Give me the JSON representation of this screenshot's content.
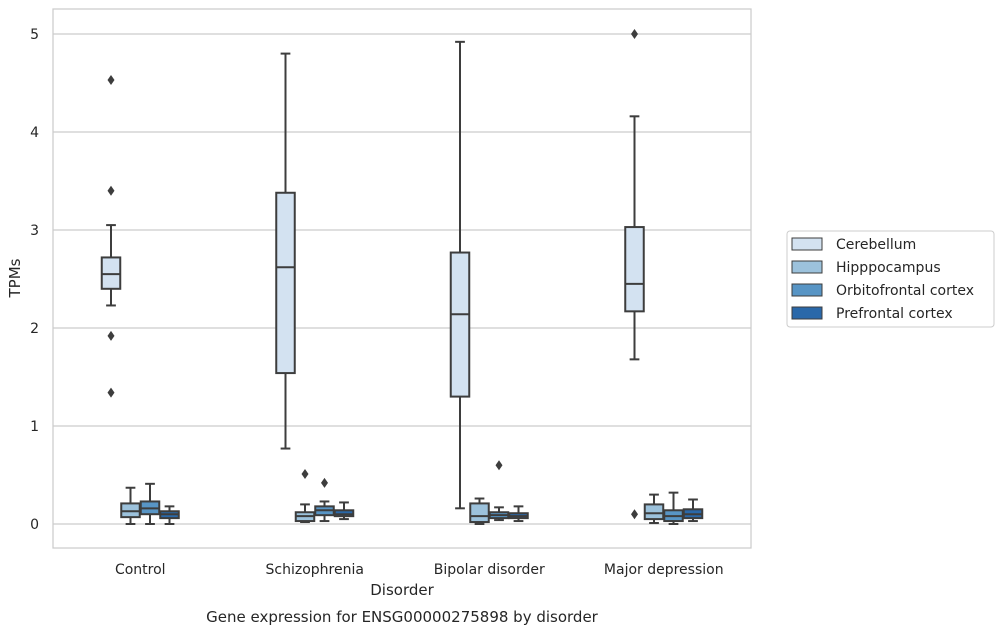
{
  "chart_data": {
    "type": "box",
    "title": "Gene expression for ENSG00000275898 by disorder",
    "xlabel": "Disorder",
    "ylabel": "TPMs",
    "ylim": [
      -0.25,
      5.25
    ],
    "yticks": [
      0,
      1,
      2,
      3,
      4,
      5
    ],
    "grid": true,
    "legend_position": "right",
    "categories": [
      "Control",
      "Schizophrenia",
      "Bipolar disorder",
      "Major depression"
    ],
    "series": [
      {
        "name": "Cerebellum",
        "color": "#d3e2f1",
        "boxes": [
          {
            "min": 2.23,
            "q1": 2.4,
            "median": 2.55,
            "q3": 2.72,
            "max": 3.05,
            "outliers": [
              4.53,
              3.4,
              1.92,
              1.34
            ]
          },
          {
            "min": 0.77,
            "q1": 1.54,
            "median": 2.62,
            "q3": 3.38,
            "max": 4.8,
            "outliers": []
          },
          {
            "min": 0.16,
            "q1": 1.3,
            "median": 2.14,
            "q3": 2.77,
            "max": 4.92,
            "outliers": []
          },
          {
            "min": 1.68,
            "q1": 2.17,
            "median": 2.45,
            "q3": 3.03,
            "max": 4.16,
            "outliers": [
              5.0,
              0.1
            ]
          }
        ]
      },
      {
        "name": "Hipppocampus",
        "color": "#9cc2dc",
        "boxes": [
          {
            "min": 0.0,
            "q1": 0.07,
            "median": 0.13,
            "q3": 0.21,
            "max": 0.37,
            "outliers": []
          },
          {
            "min": 0.02,
            "q1": 0.03,
            "median": 0.08,
            "q3": 0.12,
            "max": 0.2,
            "outliers": [
              0.51
            ]
          },
          {
            "min": 0.0,
            "q1": 0.02,
            "median": 0.08,
            "q3": 0.21,
            "max": 0.26,
            "outliers": []
          },
          {
            "min": 0.01,
            "q1": 0.05,
            "median": 0.11,
            "q3": 0.2,
            "max": 0.3,
            "outliers": []
          }
        ]
      },
      {
        "name": "Orbitofrontal cortex",
        "color": "#5895c5",
        "boxes": [
          {
            "min": 0.0,
            "q1": 0.1,
            "median": 0.16,
            "q3": 0.23,
            "max": 0.41,
            "outliers": []
          },
          {
            "min": 0.03,
            "q1": 0.09,
            "median": 0.14,
            "q3": 0.18,
            "max": 0.23,
            "outliers": [
              0.42
            ]
          },
          {
            "min": 0.04,
            "q1": 0.06,
            "median": 0.09,
            "q3": 0.12,
            "max": 0.17,
            "outliers": [
              0.6
            ]
          },
          {
            "min": 0.0,
            "q1": 0.03,
            "median": 0.08,
            "q3": 0.14,
            "max": 0.32,
            "outliers": []
          }
        ]
      },
      {
        "name": "Prefrontal cortex",
        "color": "#2a68a9",
        "boxes": [
          {
            "min": 0.0,
            "q1": 0.06,
            "median": 0.1,
            "q3": 0.13,
            "max": 0.18,
            "outliers": []
          },
          {
            "min": 0.05,
            "q1": 0.08,
            "median": 0.1,
            "q3": 0.14,
            "max": 0.22,
            "outliers": []
          },
          {
            "min": 0.03,
            "q1": 0.06,
            "median": 0.08,
            "q3": 0.11,
            "max": 0.18,
            "outliers": []
          },
          {
            "min": 0.03,
            "q1": 0.06,
            "median": 0.1,
            "q3": 0.15,
            "max": 0.25,
            "outliers": []
          }
        ]
      }
    ]
  }
}
